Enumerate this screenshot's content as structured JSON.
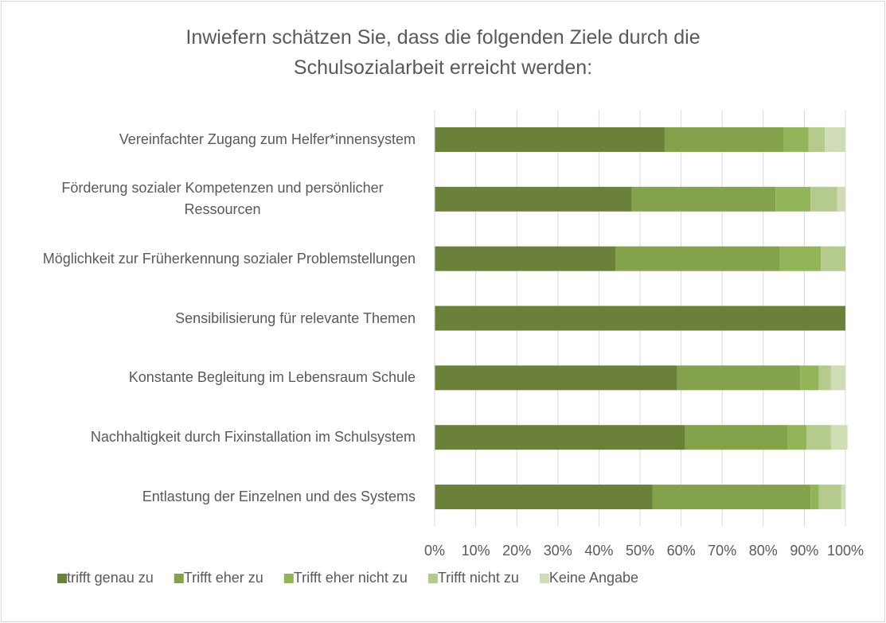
{
  "chart_data": {
    "type": "stacked-bar-horizontal",
    "title": "Inwiefern schätzen Sie, dass die folgenden Ziele durch die Schulsozialarbeit erreicht werden:",
    "categories": [
      "Vereinfachter Zugang zum Helfer*innensystem",
      "Förderung sozialer Kompetenzen und persönlicher Ressourcen",
      "Möglichkeit zur Früherkennung sozialer Problemstellungen",
      "Sensibilisierung für relevante Themen",
      "Konstante Begleitung im Lebensraum Schule",
      "Nachhaltigkeit durch Fixinstallation im Schulsystem",
      "Entlastung der Einzelnen und des Systems"
    ],
    "series": [
      {
        "name": "trifft genau zu",
        "color": "#6b8039",
        "values": [
          56,
          48,
          44,
          100,
          59,
          61,
          53
        ]
      },
      {
        "name": "Trifft eher zu",
        "color": "#84a14c",
        "values": [
          29,
          35,
          40,
          0,
          30,
          25,
          38.5
        ]
      },
      {
        "name": "Trifft eher nicht zu",
        "color": "#93b55a",
        "values": [
          6,
          8.5,
          10,
          0,
          4.5,
          4.5,
          2
        ]
      },
      {
        "name": "Trifft nicht zu",
        "color": "#b5cb8e",
        "values": [
          4,
          6.5,
          6,
          0,
          3,
          6,
          5.5
        ]
      },
      {
        "name": "Keine Angabe",
        "color": "#cfdcb6",
        "values": [
          5,
          2,
          0,
          0,
          3.5,
          4,
          1
        ]
      }
    ],
    "xlim": [
      0,
      100
    ],
    "xticks": [
      {
        "value": 0,
        "label": "0%"
      },
      {
        "value": 10,
        "label": "10%"
      },
      {
        "value": 20,
        "label": "20%"
      },
      {
        "value": 30,
        "label": "30%"
      },
      {
        "value": 40,
        "label": "40%"
      },
      {
        "value": 50,
        "label": "50%"
      },
      {
        "value": 60,
        "label": "60%"
      },
      {
        "value": 70,
        "label": "70%"
      },
      {
        "value": 80,
        "label": "80%"
      },
      {
        "value": 90,
        "label": "90%"
      },
      {
        "value": 100,
        "label": "100%"
      }
    ],
    "grid": true,
    "legend": "bottom"
  }
}
